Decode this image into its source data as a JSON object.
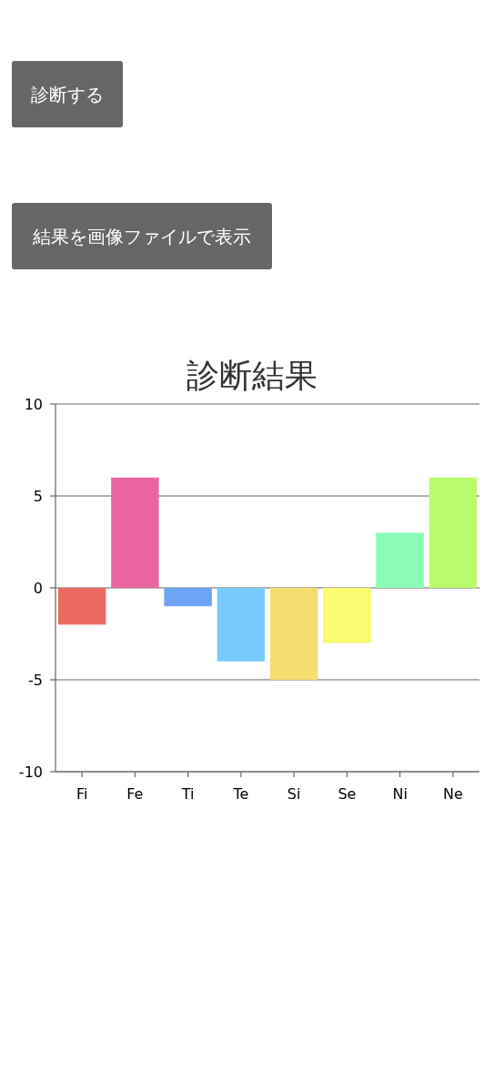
{
  "chart_data": {
    "type": "bar",
    "title": "診断結果",
    "annotations": [
      "診断する",
      "結果を画像ファイルで表示"
    ],
    "categories": [
      "Fi",
      "Fe",
      "Ti",
      "Te",
      "Si",
      "Se",
      "Ni",
      "Ne"
    ],
    "values": [
      -2,
      6,
      -1,
      -4,
      -5,
      -3,
      3,
      6
    ],
    "colors": [
      "#eb6b62",
      "#eb65a0",
      "#6fa4f5",
      "#78cbfc",
      "#f7dc6f",
      "#f9fb70",
      "#8afcb8",
      "#b8fc6c"
    ],
    "ylim": [
      -10,
      10
    ],
    "yticks": [
      -10,
      -5,
      0,
      5,
      10
    ],
    "grid": "y"
  }
}
